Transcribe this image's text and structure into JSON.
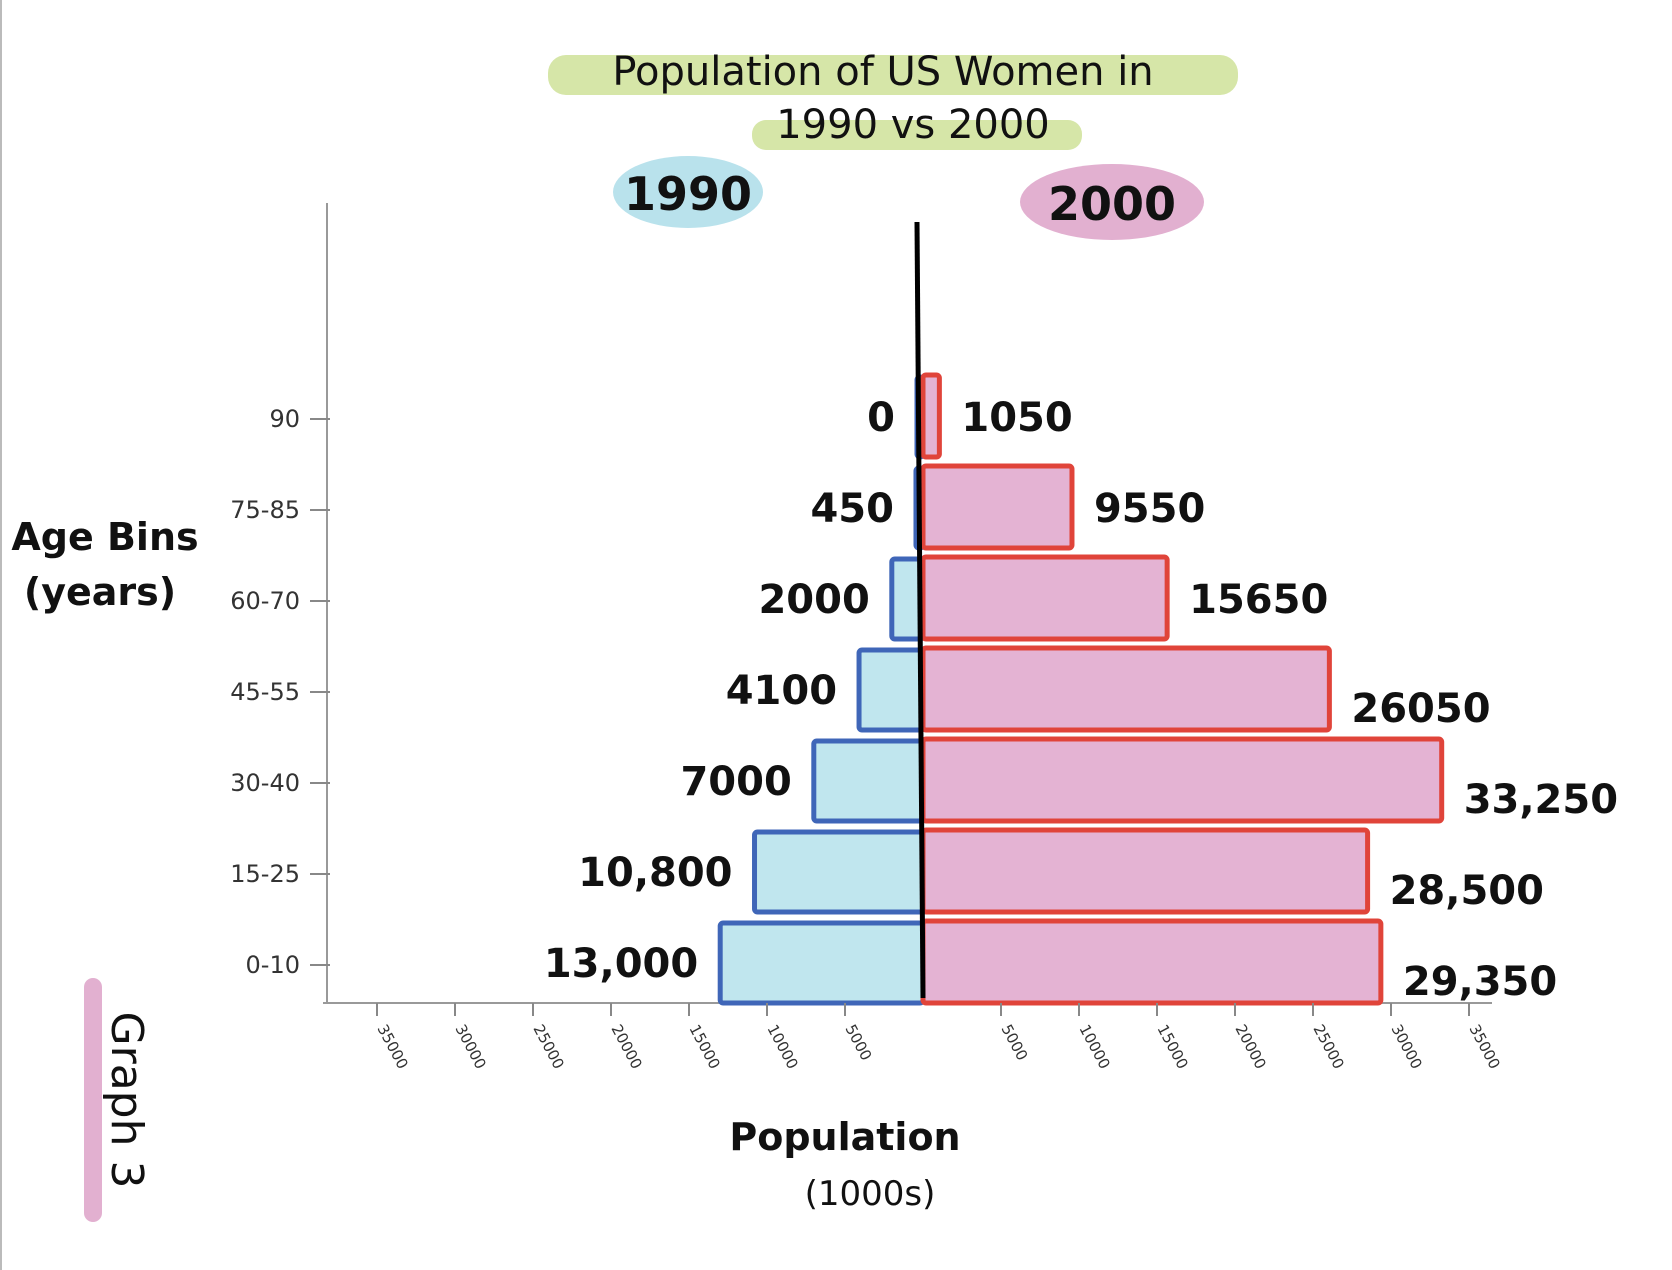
{
  "chart_data": {
    "type": "bar",
    "orientation": "horizontal-diverging",
    "title_line1": "Population of US Women in",
    "title_line2": "1990 vs 2000",
    "graph_tag": "Graph 3",
    "ylabel_line1": "Age Bins",
    "ylabel_line2": "(years)",
    "xlabel_line1": "Population",
    "xlabel_line2": "(1000s)",
    "categories": [
      "90",
      "75-85",
      "60-70",
      "45-55",
      "30-40",
      "15-25",
      "0-10"
    ],
    "series": [
      {
        "name": "1990",
        "side": "left",
        "color": "#c0e6ee",
        "stroke": "#3f66b8",
        "values": [
          0,
          450,
          2000,
          4100,
          7000,
          10800,
          13000
        ],
        "labels": [
          "0",
          "450",
          "2000",
          "4100",
          "7000",
          "10,800",
          "13,000"
        ]
      },
      {
        "name": "2000",
        "side": "right",
        "color": "#e4b3d3",
        "stroke": "#e0443a",
        "values": [
          1050,
          9550,
          15650,
          26050,
          33250,
          28500,
          29350
        ],
        "labels": [
          "1050",
          "9550",
          "15650",
          "26050",
          "33,250",
          "28,500",
          "29,350"
        ]
      }
    ],
    "xticks_left": [
      "35000",
      "30000",
      "25000",
      "20000",
      "15000",
      "10000",
      "5000"
    ],
    "xticks_left_values": [
      35000,
      30000,
      25000,
      20000,
      15000,
      10000,
      5000
    ],
    "xticks_right": [
      "5000",
      "10000",
      "15000",
      "20000",
      "25000",
      "30000",
      "35000"
    ],
    "xticks_right_values": [
      5000,
      10000,
      15000,
      20000,
      25000,
      30000,
      35000
    ],
    "xlim": [
      -35000,
      35000
    ],
    "legend_1990_color": "#b9e2ec",
    "legend_2000_color": "#e2b0d0",
    "title_highlight_color": "#d6e6a8",
    "graph_tag_color": "#e2b0d0",
    "grid": false,
    "legend": "top"
  }
}
